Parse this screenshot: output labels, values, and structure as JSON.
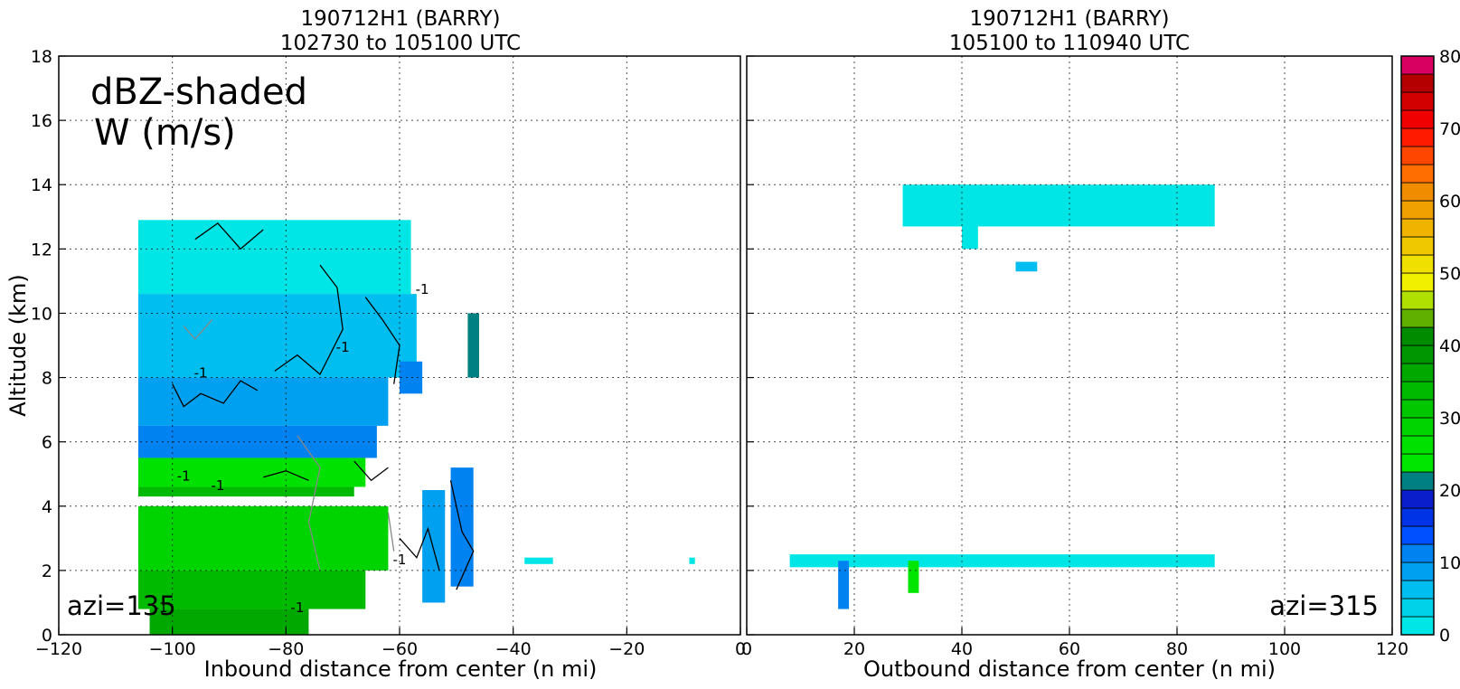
{
  "chart_data": [
    {
      "type": "heatmap",
      "title_line1": "190712H1 (BARRY)",
      "title_line2": "102730 to 105100 UTC",
      "xlabel": "Inbound distance from center (n mi)",
      "ylabel": "Altitude (km)",
      "xlim": [
        -120,
        0
      ],
      "ylim": [
        0,
        18
      ],
      "x_ticks": [
        "−120",
        "−100",
        "−80",
        "−60",
        "−40",
        "−20",
        "0"
      ],
      "x_tick_values": [
        -120,
        -100,
        -80,
        -60,
        -40,
        -20,
        0
      ],
      "y_ticks": [
        "0",
        "2",
        "4",
        "6",
        "8",
        "10",
        "12",
        "14",
        "16",
        "18"
      ],
      "y_tick_values": [
        0,
        2,
        4,
        6,
        8,
        10,
        12,
        14,
        16,
        18
      ],
      "grid": true,
      "annotation": [
        "dBZ-shaded",
        "W (m/s)"
      ],
      "azimuth_label": "azi=135",
      "contour_label": "-1",
      "reflectivity_regions": [
        {
          "x0": -106,
          "x1": -58,
          "y0": 10.6,
          "y1": 12.9,
          "dbz": 2
        },
        {
          "x0": -106,
          "x1": -57,
          "y0": 8.0,
          "y1": 10.6,
          "dbz": 5
        },
        {
          "x0": -106,
          "x1": -62,
          "y0": 6.5,
          "y1": 8.0,
          "dbz": 9
        },
        {
          "x0": -106,
          "x1": -64,
          "y0": 5.5,
          "y1": 6.5,
          "dbz": 12
        },
        {
          "x0": -106,
          "x1": -66,
          "y0": 4.6,
          "y1": 5.5,
          "dbz": 25
        },
        {
          "x0": -106,
          "x1": -68,
          "y0": 4.3,
          "y1": 4.6,
          "dbz": 33
        },
        {
          "x0": -106,
          "x1": -62,
          "y0": 2.0,
          "y1": 4.0,
          "dbz": 28
        },
        {
          "x0": -106,
          "x1": -66,
          "y0": 0.8,
          "y1": 2.0,
          "dbz": 33
        },
        {
          "x0": -104,
          "x1": -76,
          "y0": 0.0,
          "y1": 0.8,
          "dbz": 37
        },
        {
          "x0": -56,
          "x1": -52,
          "y0": 1.0,
          "y1": 4.5,
          "dbz": 8
        },
        {
          "x0": -51,
          "x1": -47,
          "y0": 1.5,
          "y1": 5.2,
          "dbz": 12
        },
        {
          "x0": -48,
          "x1": -46,
          "y0": 8.0,
          "y1": 10.0,
          "dbz": 20
        },
        {
          "x0": -60,
          "x1": -56,
          "y0": 7.5,
          "y1": 8.5,
          "dbz": 10
        },
        {
          "x0": -38,
          "x1": -33,
          "y0": 2.2,
          "y1": 2.4,
          "dbz": 2
        },
        {
          "x0": -9,
          "x1": -8,
          "y0": 2.2,
          "y1": 2.4,
          "dbz": 2
        }
      ]
    },
    {
      "type": "heatmap",
      "title_line1": "190712H1 (BARRY)",
      "title_line2": "105100 to 110940 UTC",
      "xlabel": "Outbound distance from center (n mi)",
      "xlim": [
        0,
        120
      ],
      "ylim": [
        0,
        18
      ],
      "x_ticks": [
        "0",
        "20",
        "40",
        "60",
        "80",
        "100",
        "120"
      ],
      "x_tick_values": [
        0,
        20,
        40,
        60,
        80,
        100,
        120
      ],
      "grid": true,
      "azimuth_label": "azi=315",
      "reflectivity_regions": [
        {
          "x0": 29,
          "x1": 87,
          "y0": 12.7,
          "y1": 14.0,
          "dbz": 2
        },
        {
          "x0": 40,
          "x1": 43,
          "y0": 12.0,
          "y1": 12.8,
          "dbz": 2
        },
        {
          "x0": 50,
          "x1": 54,
          "y0": 11.3,
          "y1": 11.6,
          "dbz": 5
        },
        {
          "x0": 8,
          "x1": 87,
          "y0": 2.1,
          "y1": 2.5,
          "dbz": 2
        },
        {
          "x0": 17,
          "x1": 19,
          "y0": 0.8,
          "y1": 2.3,
          "dbz": 12
        },
        {
          "x0": 30,
          "x1": 32,
          "y0": 1.3,
          "y1": 2.3,
          "dbz": 24
        }
      ]
    }
  ],
  "colorbar": {
    "min": 0,
    "max": 80,
    "step": 2.5,
    "tick_labels": [
      "0",
      "10",
      "20",
      "30",
      "40",
      "50",
      "60",
      "70",
      "80"
    ],
    "tick_values": [
      0,
      10,
      20,
      30,
      40,
      50,
      60,
      70,
      80
    ],
    "colors": [
      "#00e5e5",
      "#00d2ea",
      "#00beef",
      "#00a0f0",
      "#0082f0",
      "#0050ff",
      "#0032e6",
      "#0a1ecc",
      "#008080",
      "#00e600",
      "#00e100",
      "#00d400",
      "#00c700",
      "#00ba00",
      "#00a800",
      "#009600",
      "#008c00",
      "#60b000",
      "#b0e000",
      "#f0f000",
      "#f0e000",
      "#f0c800",
      "#f0b400",
      "#f0a000",
      "#f08c00",
      "#ff6e00",
      "#ff4600",
      "#ff1a00",
      "#f00000",
      "#d20000",
      "#b40000",
      "#d80060",
      "#f000a0",
      "#f000e0",
      "#c040e0",
      "#a050d8",
      "#8050b0",
      "#40205a",
      "#000000"
    ]
  }
}
